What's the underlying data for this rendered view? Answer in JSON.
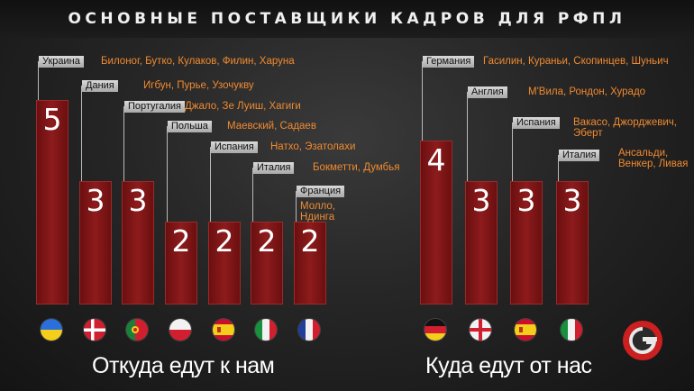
{
  "title": "ОСНОВНЫЕ ПОСТАВЩИКИ КАДРОВ ДЛЯ РФПЛ",
  "chart_data": [
    {
      "type": "bar",
      "title": "Откуда едут к нам",
      "categories": [
        "Украина",
        "Дания",
        "Португалия",
        "Польша",
        "Испания",
        "Италия",
        "Франция"
      ],
      "values": [
        5,
        3,
        3,
        2,
        2,
        2,
        2
      ],
      "players": [
        "Билоног, Бутко, Кулаков, Филин, Харуна",
        "Игбун, Пурье, Узочукву",
        "Джало, Зе Луиш, Хагиги",
        "Маевский, Садаев",
        "Натхо, Эзатолахи",
        "Бокметти, Думбья",
        "Молло, Ндинга"
      ],
      "flags": [
        "flag-ukraine-icon",
        "flag-denmark-icon",
        "flag-portugal-icon",
        "flag-poland-icon",
        "flag-spain-icon",
        "flag-italy-icon",
        "flag-france-icon"
      ],
      "ylim": [
        0,
        5
      ]
    },
    {
      "type": "bar",
      "title": "Куда едут от нас",
      "categories": [
        "Германия",
        "Англия",
        "Испания",
        "Италия"
      ],
      "values": [
        4,
        3,
        3,
        3
      ],
      "players": [
        "Гасилин, Кураньи, Скопинцев, Шуньич",
        "М'Вила, Рондон, Хурадо",
        "Вакасо, Джорджевич, Эберт",
        "Ансальди, Венкер, Ливая"
      ],
      "flags": [
        "flag-germany-icon",
        "flag-england-icon",
        "flag-spain-icon",
        "flag-italy-icon"
      ],
      "ylim": [
        0,
        5
      ]
    }
  ],
  "colors": {
    "bar": "#8e1b1c",
    "players_text": "#f08a30",
    "tag_bg": "#c8c8c8"
  }
}
